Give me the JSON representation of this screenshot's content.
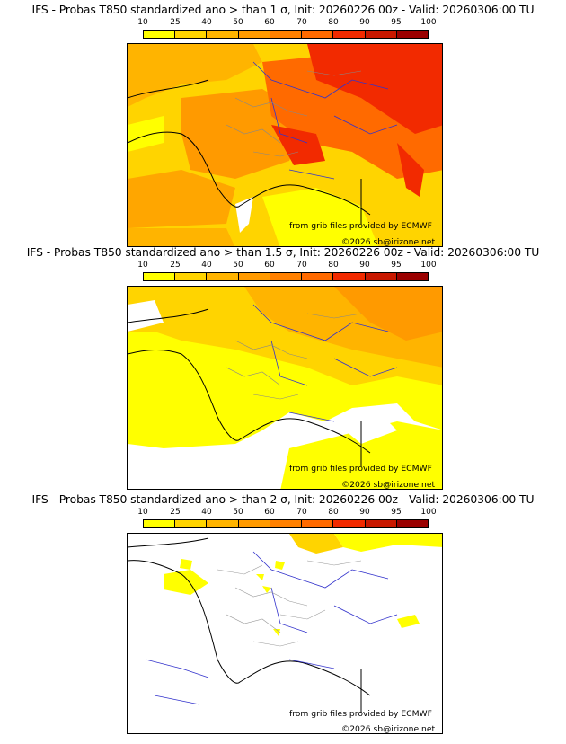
{
  "colorbar": {
    "ticks": [
      "10",
      "25",
      "40",
      "50",
      "60",
      "70",
      "80",
      "90",
      "95",
      "100"
    ],
    "colors": [
      "#ffff00",
      "#ffd400",
      "#ffb400",
      "#ff9a00",
      "#ff8000",
      "#ff6a00",
      "#f22a00",
      "#c81800",
      "#9a0000",
      "#640000"
    ]
  },
  "panels": [
    {
      "title": "IFS - Probas T850  standardized ano > than 1 σ, Init: 20260226 00z - Valid: 20260306:00 TU",
      "credit_source": "from grib files provided by ECMWF",
      "credit_copyright": "©2026 sb@irizone.net",
      "level": "high"
    },
    {
      "title": "IFS - Probas T850  standardized ano > than 1.5 σ, Init: 20260226 00z - Valid: 20260306:00 TU",
      "credit_source": "from grib files provided by ECMWF",
      "credit_copyright": "©2026 sb@irizone.net",
      "level": "medium"
    },
    {
      "title": "IFS - Probas T850  standardized ano > than 2 σ, Init: 20260226 00z - Valid: 20260306:00 TU",
      "credit_source": "from grib files provided by ECMWF",
      "credit_copyright": "©2026 sb@irizone.net",
      "level": "low"
    }
  ]
}
